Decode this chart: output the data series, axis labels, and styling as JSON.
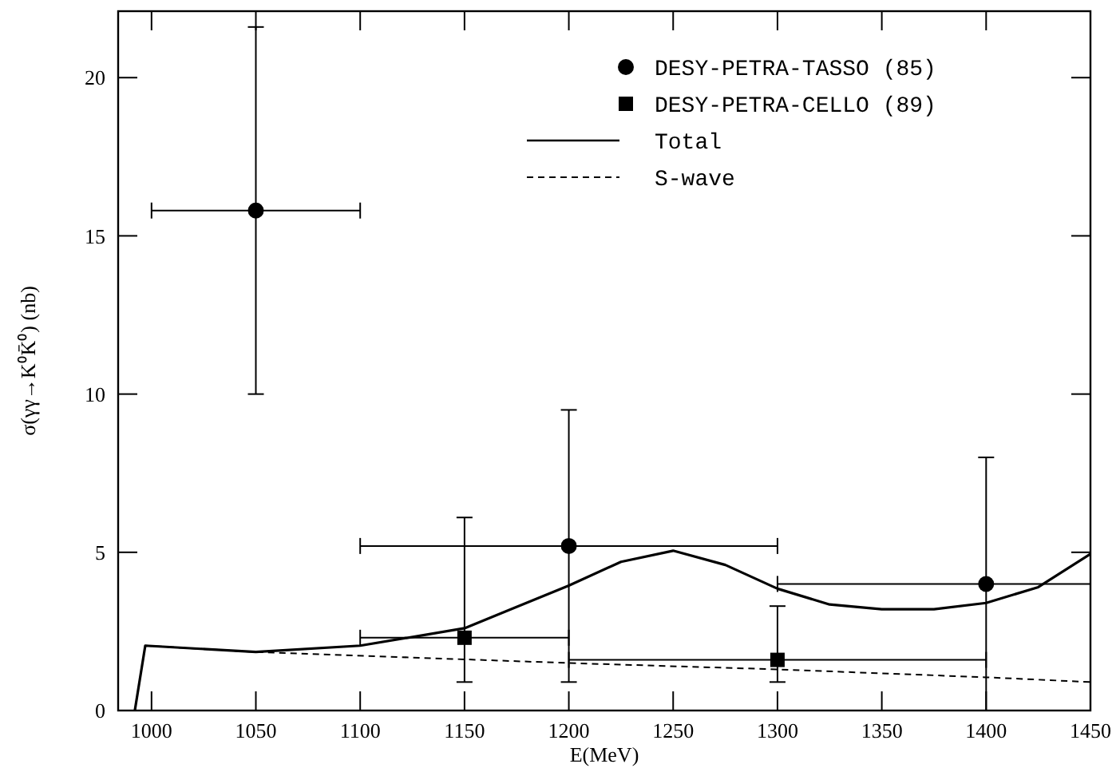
{
  "chart_data": {
    "type": "scatter",
    "xlabel": "E(MeV)",
    "ylabel": "σ(γγ→K⁰K̄⁰) (nb)",
    "xlim": [
      984,
      1450
    ],
    "ylim": [
      0,
      22.1
    ],
    "xticks": [
      1000,
      1050,
      1100,
      1150,
      1200,
      1250,
      1300,
      1350,
      1400,
      1450
    ],
    "yticks": [
      0,
      5,
      10,
      15,
      20
    ],
    "grid": false,
    "legend": "top right",
    "series": [
      {
        "name": "DESY-PETRA-TASSO (85)",
        "marker": "circle",
        "color": "#000000",
        "x": [
          1050,
          1200,
          1400
        ],
        "values": [
          15.8,
          5.2,
          4.0
        ],
        "errors": [
          [
            10.0,
            21.6
          ],
          [
            0.9,
            9.5
          ],
          [
            0,
            8.0
          ]
        ],
        "xerrors": [
          [
            1000,
            1100
          ],
          [
            1100,
            1300
          ],
          [
            1300,
            1450
          ]
        ]
      },
      {
        "name": "DESY-PETRA-CELLO (89)",
        "marker": "square",
        "color": "#000000",
        "x": [
          1150,
          1300
        ],
        "values": [
          2.3,
          1.6
        ],
        "errors": [
          [
            0.9,
            6.1
          ],
          [
            0.9,
            3.3
          ]
        ],
        "xerrors": [
          [
            1100,
            1200
          ],
          [
            1200,
            1400
          ]
        ]
      },
      {
        "name": "Total",
        "type": "line",
        "line_style": "solid",
        "color": "#000000",
        "x": [
          992,
          997,
          1050,
          1100,
          1150,
          1200,
          1225,
          1250,
          1275,
          1300,
          1325,
          1350,
          1375,
          1400,
          1425,
          1450
        ],
        "values": [
          0,
          2.05,
          1.85,
          2.05,
          2.6,
          3.95,
          4.7,
          5.05,
          4.6,
          3.85,
          3.35,
          3.2,
          3.2,
          3.4,
          3.9,
          4.95
        ]
      },
      {
        "name": "S-wave",
        "type": "line",
        "line_style": "dashed",
        "color": "#000000",
        "x": [
          997,
          1050,
          1200,
          1300,
          1400,
          1450
        ],
        "values": [
          2.05,
          1.85,
          1.5,
          1.3,
          1.05,
          0.9
        ]
      }
    ]
  }
}
